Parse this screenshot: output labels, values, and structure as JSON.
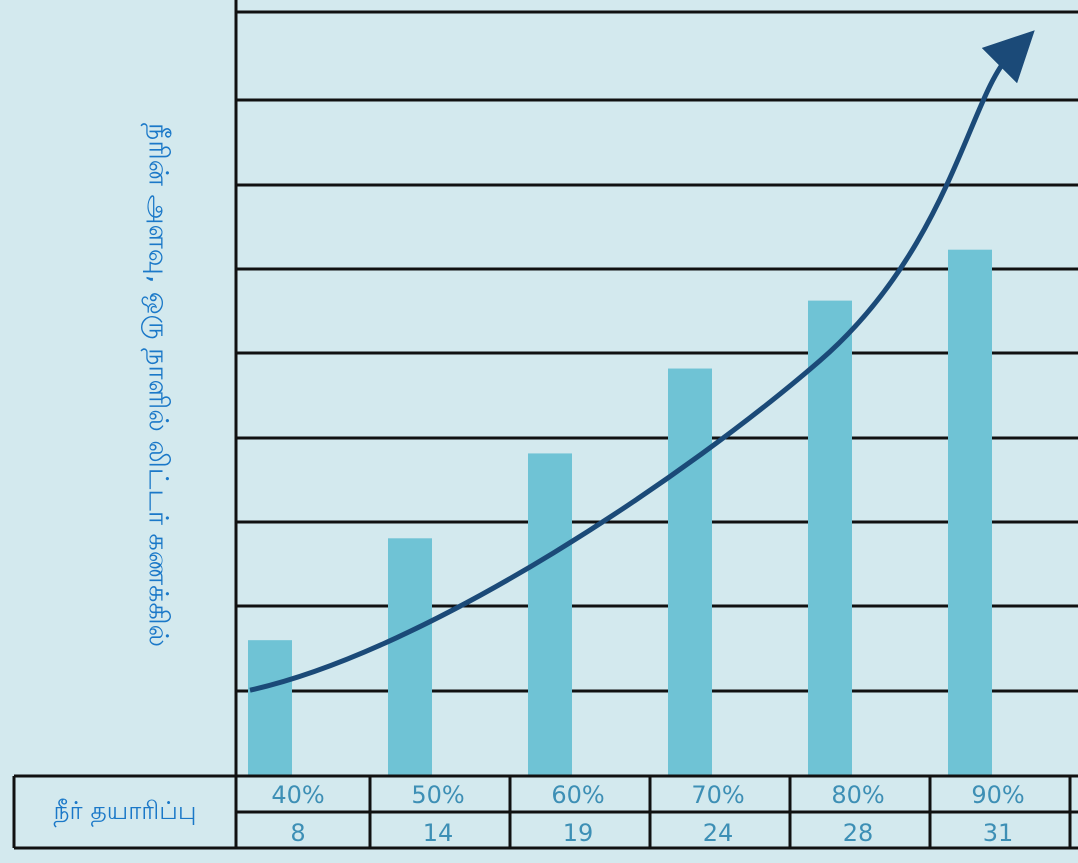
{
  "chart_data": {
    "type": "bar",
    "categories": [
      "40%",
      "50%",
      "60%",
      "70%",
      "80%",
      "90%"
    ],
    "values": [
      8,
      14,
      19,
      24,
      28,
      31
    ],
    "ylabel": "நீரின் அளவு, ஒரு நாளில் லிட்டர் கணக்கில்",
    "table_row_label": "நீர் தயாரிப்பு",
    "trend": "increasing",
    "ylim": [
      0,
      45
    ],
    "grid": true,
    "colors": {
      "background": "#d3e9ee",
      "bar": "#6fc3d5",
      "arrow": "#1b4a78",
      "label": "#1a78c8",
      "tick": "#3d8fb5",
      "grid": "#111111"
    }
  }
}
